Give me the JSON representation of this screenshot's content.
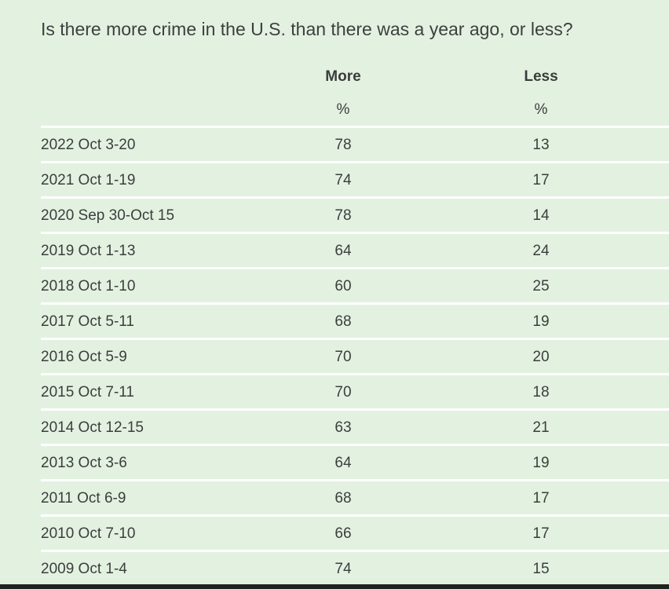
{
  "question": "Is there more crime in the U.S. than there was a year ago, or less?",
  "chart_data": {
    "type": "table",
    "columns": [
      {
        "label": "More",
        "unit": "%"
      },
      {
        "label": "Less",
        "unit": "%"
      }
    ],
    "rows": [
      {
        "date": "2022 Oct 3-20",
        "more": "78",
        "less": "13"
      },
      {
        "date": "2021 Oct 1-19",
        "more": "74",
        "less": "17"
      },
      {
        "date": "2020 Sep 30-Oct 15",
        "more": "78",
        "less": "14"
      },
      {
        "date": "2019 Oct 1-13",
        "more": "64",
        "less": "24"
      },
      {
        "date": "2018 Oct 1-10",
        "more": "60",
        "less": "25"
      },
      {
        "date": "2017 Oct 5-11",
        "more": "68",
        "less": "19"
      },
      {
        "date": "2016 Oct 5-9",
        "more": "70",
        "less": "20"
      },
      {
        "date": "2015 Oct 7-11",
        "more": "70",
        "less": "18"
      },
      {
        "date": "2014 Oct 12-15",
        "more": "63",
        "less": "21"
      },
      {
        "date": "2013 Oct 3-6",
        "more": "64",
        "less": "19"
      },
      {
        "date": "2011 Oct 6-9",
        "more": "68",
        "less": "17"
      },
      {
        "date": "2010 Oct 7-10",
        "more": "66",
        "less": "17"
      },
      {
        "date": "2009 Oct 1-4",
        "more": "74",
        "less": "15"
      }
    ]
  },
  "colors": {
    "background": "#e3f1e1",
    "rule": "#ffffff",
    "text": "#3b3f3c"
  }
}
